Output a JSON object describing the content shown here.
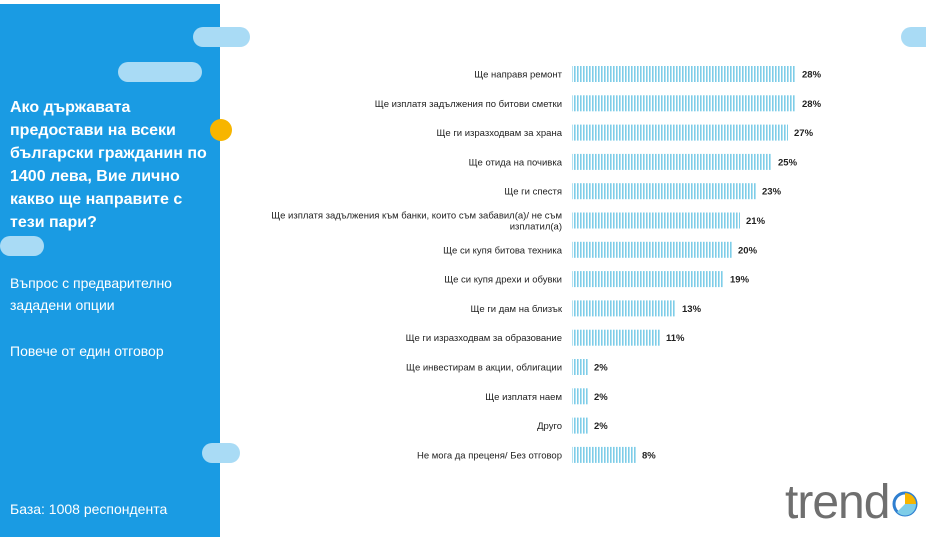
{
  "sidebar": {
    "question": "Ако държавата предостави на всеки български гражданин по 1400 лева, Вие лично какво ще направите с тези пари?",
    "note_type": "Въпрос с предварително зададени опции",
    "note_answers": "Повече от един отговор",
    "base": "База:  1008 респондента"
  },
  "colors": {
    "sidebar_bg": "#1a9be3",
    "bar": "#7ecde8",
    "accent_dot": "#f7b500",
    "decor_pill": "#a9dbf5"
  },
  "logo": {
    "text": "trend"
  },
  "chart_data": {
    "type": "bar",
    "orientation": "horizontal",
    "title": "",
    "xlabel": "",
    "ylabel": "",
    "unit": "%",
    "categories": [
      [
        "Ще направя ремонт"
      ],
      [
        "Ще изплатя задължения по битови сметки"
      ],
      [
        "Ще ги изразходвам за храна"
      ],
      [
        "Ще отида на почивка"
      ],
      [
        "Ще ги спестя"
      ],
      [
        "Ще изплатя задължения към банки, които съм забавил(а)/ не съм",
        "изплатил(а)"
      ],
      [
        "Ще си купя битова техника"
      ],
      [
        "Ще си купя дрехи и обувки"
      ],
      [
        "Ще ги дам на близък"
      ],
      [
        "Ще ги изразходвам за образование"
      ],
      [
        "Ще инвестирам в акции, облигации"
      ],
      [
        "Ще изплатя наем"
      ],
      [
        "Друго"
      ],
      [
        "Не мога да преценя/ Без отговор"
      ]
    ],
    "values": [
      28,
      28,
      27,
      25,
      23,
      21,
      20,
      19,
      13,
      11,
      2,
      2,
      2,
      8
    ],
    "value_labels": [
      "28%",
      "28%",
      "27%",
      "25%",
      "23%",
      "21%",
      "20%",
      "19%",
      "13%",
      "11%",
      "2%",
      "2%",
      "2%",
      "8%"
    ],
    "xlim": [
      0,
      28
    ],
    "grid": false,
    "legend": "none"
  }
}
